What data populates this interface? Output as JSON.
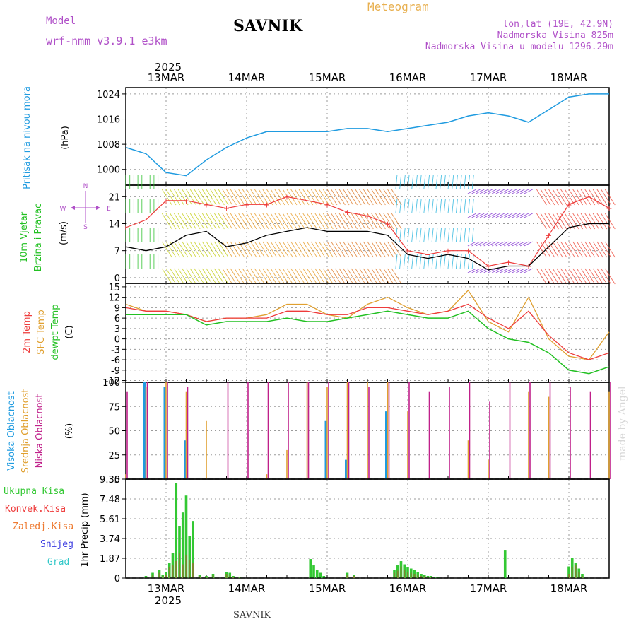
{
  "header": {
    "model_label": "Model",
    "model_name": "wrf-nmm_v3.9.1 e3km",
    "station": "SAVNIK",
    "chart_kind": "Meteogram",
    "coords": "lon,lat (19E, 42.9N)",
    "elevation": "Nadmorska Visina 825m",
    "model_elevation": "Nadmorska Visina u modelu 1296.29m"
  },
  "footer": {
    "station": "SAVNIK",
    "credit": "made by Angel"
  },
  "colors": {
    "pressure": "#1f9be0",
    "temp2m": "#ee3b3b",
    "sfc": "#e0a030",
    "dew": "#22c022",
    "high_cloud": "#1f9be0",
    "mid_cloud": "#e0a030",
    "low_cloud": "#c0208a",
    "precip_total": "#33c833",
    "precip_conv": "#ee3b3b",
    "precip_grid": "#ee7a30",
    "snow": "#3a3ae0",
    "grad": "#30c8c8",
    "wind_speed": "#000000",
    "gust": "#ee3b3b",
    "purple": "#b050c8"
  },
  "time_axis": {
    "year": "2025",
    "days": [
      "13MAR",
      "14MAR",
      "15MAR",
      "16MAR",
      "17MAR",
      "18MAR"
    ],
    "start_hours_before_first_day": 12,
    "total_hours": 144
  },
  "chart_data": [
    {
      "type": "line",
      "name": "pressure",
      "title": "Pritisak na nivou mora",
      "ylabel": "(hPa)",
      "ylim": [
        995,
        1026
      ],
      "yticks": [
        "1000",
        "1008",
        "1016",
        "1024"
      ],
      "ytick_values": [
        1000,
        1008,
        1016,
        1024
      ],
      "x_hours": [
        0,
        6,
        12,
        18,
        24,
        30,
        36,
        42,
        48,
        54,
        60,
        66,
        72,
        78,
        84,
        90,
        96,
        102,
        108,
        114,
        120,
        126,
        132,
        138,
        144
      ],
      "series": [
        {
          "name": "Pritisak na nivou mora",
          "values": [
            1007,
            1005,
            999,
            998,
            1003,
            1007,
            1010,
            1012,
            1012,
            1012,
            1012,
            1013,
            1013,
            1012,
            1013,
            1014,
            1015,
            1017,
            1018,
            1017,
            1015,
            1019,
            1023,
            1024,
            1024
          ]
        }
      ]
    },
    {
      "type": "line",
      "name": "wind",
      "title": "10m Vjetar Brzina i Pravac",
      "ylabel": "(m/s)",
      "ylim": [
        -1.5,
        24
      ],
      "yticks": [
        "0",
        "7",
        "14",
        "21"
      ],
      "ytick_values": [
        0,
        7,
        14,
        21
      ],
      "compass": [
        "N",
        "W",
        "E",
        "S"
      ],
      "x_hours": [
        0,
        6,
        12,
        18,
        24,
        30,
        36,
        42,
        48,
        54,
        60,
        66,
        72,
        78,
        84,
        90,
        96,
        102,
        108,
        114,
        120,
        126,
        132,
        138,
        144
      ],
      "series": [
        {
          "name": "Brzina",
          "values": [
            8,
            7,
            8,
            11,
            12,
            8,
            9,
            11,
            12,
            13,
            12,
            12,
            12,
            11,
            6,
            5,
            6,
            5,
            2,
            3,
            3,
            8,
            13,
            14,
            14
          ]
        },
        {
          "name": "Udari",
          "values": [
            13,
            15,
            20,
            20,
            19,
            18,
            19,
            19,
            21,
            20,
            19,
            17,
            16,
            14,
            7,
            6,
            7,
            7,
            3,
            4,
            3,
            11,
            19,
            21,
            18
          ]
        }
      ]
    },
    {
      "type": "line",
      "name": "temperature",
      "title": "2m Temp / SFC Temp / dewpt Temp",
      "ylabel": "(C)",
      "ylim": [
        -12.5,
        16
      ],
      "yticks": [
        "15",
        "12",
        "9",
        "6",
        "3",
        "0",
        "-3",
        "-6",
        "-9",
        "-12"
      ],
      "ytick_values": [
        15,
        12,
        9,
        6,
        3,
        0,
        -3,
        -6,
        -9,
        -12
      ],
      "x_hours": [
        0,
        6,
        12,
        18,
        24,
        30,
        36,
        42,
        48,
        54,
        60,
        66,
        72,
        78,
        84,
        90,
        96,
        102,
        108,
        114,
        120,
        126,
        132,
        138,
        144
      ],
      "series": [
        {
          "name": "2m Temp",
          "values": [
            9,
            8,
            8,
            7,
            5,
            6,
            6,
            6,
            8,
            8,
            7,
            7,
            9,
            9,
            8,
            7,
            8,
            10,
            6,
            3,
            8,
            1,
            -4,
            -6,
            -4
          ]
        },
        {
          "name": "SFC Temp",
          "values": [
            10,
            8,
            8,
            7,
            5,
            6,
            6,
            7,
            10,
            10,
            7,
            6,
            10,
            12,
            9,
            7,
            8,
            14,
            5,
            2,
            12,
            0,
            -5,
            -6,
            2
          ]
        },
        {
          "name": "dewpt Temp",
          "values": [
            7,
            7,
            7,
            7,
            4,
            5,
            5,
            5,
            6,
            5,
            5,
            6,
            7,
            8,
            7,
            6,
            6,
            8,
            3,
            0,
            -1,
            -4,
            -9,
            -10,
            -8
          ]
        }
      ]
    },
    {
      "type": "bar",
      "name": "clouds",
      "title": "Visoka / Srednja / Niska Oblacnost",
      "ylabel": "(%)",
      "ylim": [
        0,
        100
      ],
      "yticks": [
        "0",
        "25",
        "50",
        "75",
        "100"
      ],
      "ytick_values": [
        0,
        25,
        50,
        75,
        100
      ],
      "x_hours": [
        0,
        6,
        12,
        18,
        24,
        30,
        36,
        42,
        48,
        54,
        60,
        66,
        72,
        78,
        84,
        90,
        96,
        102,
        108,
        114,
        120,
        126,
        132,
        138,
        144
      ],
      "series": [
        {
          "name": "Visoka Oblacnost",
          "values": [
            0,
            100,
            95,
            40,
            0,
            0,
            0,
            0,
            0,
            0,
            60,
            20,
            0,
            70,
            0,
            0,
            0,
            0,
            0,
            0,
            0,
            0,
            0,
            0,
            0
          ]
        },
        {
          "name": "Srednja Oblacnost",
          "values": [
            5,
            95,
            100,
            90,
            60,
            0,
            0,
            5,
            30,
            100,
            95,
            100,
            100,
            100,
            70,
            0,
            0,
            40,
            20,
            0,
            90,
            85,
            0,
            0,
            90
          ]
        },
        {
          "name": "Niska Oblacnost",
          "values": [
            90,
            100,
            100,
            95,
            0,
            100,
            100,
            100,
            100,
            100,
            100,
            100,
            95,
            100,
            100,
            90,
            95,
            100,
            80,
            100,
            100,
            100,
            95,
            90,
            100
          ]
        }
      ]
    },
    {
      "type": "bar",
      "name": "precip",
      "title": "1hr Precip",
      "ylabel": "1hr Precip (mm)",
      "ylim": [
        0,
        9.35
      ],
      "yticks": [
        "0",
        "1.87",
        "3.74",
        "5.61",
        "7.48",
        "9.35"
      ],
      "ytick_values": [
        0,
        1.87,
        3.74,
        5.61,
        7.48,
        9.35
      ],
      "legend": [
        "Ukupna Kisa",
        "Konvek.Kisa",
        "Zaledj.Kisa",
        "Snijeg",
        "Grad"
      ],
      "x_hours": [
        6,
        8,
        10,
        11,
        12,
        13,
        14,
        15,
        16,
        17,
        18,
        19,
        20,
        22,
        24,
        26,
        30,
        31,
        32,
        34,
        55,
        56,
        57,
        58,
        59,
        66,
        68,
        80,
        81,
        82,
        83,
        84,
        85,
        86,
        87,
        88,
        89,
        90,
        91,
        92,
        93,
        113,
        132,
        133,
        134,
        135,
        136
      ],
      "series": [
        {
          "name": "Ukupna Kisa",
          "values": [
            0.2,
            0.5,
            0.8,
            0.3,
            0.6,
            1.4,
            2.4,
            9.0,
            4.9,
            6.2,
            7.8,
            4.0,
            5.4,
            0.3,
            0.2,
            0.4,
            0.6,
            0.5,
            0.2,
            0.1,
            1.8,
            1.2,
            0.8,
            0.5,
            0.2,
            0.5,
            0.3,
            0.8,
            1.2,
            1.6,
            1.3,
            1.0,
            0.9,
            0.8,
            0.6,
            0.4,
            0.3,
            0.2,
            0.2,
            0.1,
            0.1,
            2.6,
            1.1,
            1.9,
            1.4,
            0.9,
            0.4
          ]
        },
        {
          "name": "Konvek.Kisa",
          "values": [
            0.1,
            0.3,
            0.5,
            0.2,
            0.3,
            1.0,
            1.2,
            1.6,
            2.4,
            1.3,
            2.2,
            1.7,
            1.4,
            0.2,
            0.1,
            0.3,
            0.4,
            0.3,
            0.1,
            0.1,
            0.0,
            0.0,
            0.0,
            0.0,
            0.0,
            0.3,
            0.2,
            0.5,
            0.7,
            1.1,
            0.8,
            0.6,
            0.5,
            0.4,
            0.3,
            0.2,
            0.2,
            0.1,
            0.1,
            0.0,
            0.0,
            0.0,
            0.4,
            1.0,
            1.2,
            0.6,
            0.2
          ]
        },
        {
          "name": "Snijeg",
          "values": [
            0,
            0,
            0,
            0,
            0,
            0,
            0,
            0,
            0,
            0,
            0,
            0,
            0,
            0,
            0,
            0,
            0,
            0,
            0,
            0,
            0,
            0,
            0,
            0,
            0,
            0,
            0,
            0,
            0,
            0,
            0,
            0,
            0,
            0,
            0,
            0,
            0,
            0,
            0,
            0,
            0,
            0,
            0,
            0,
            0,
            0,
            0
          ]
        }
      ]
    }
  ]
}
